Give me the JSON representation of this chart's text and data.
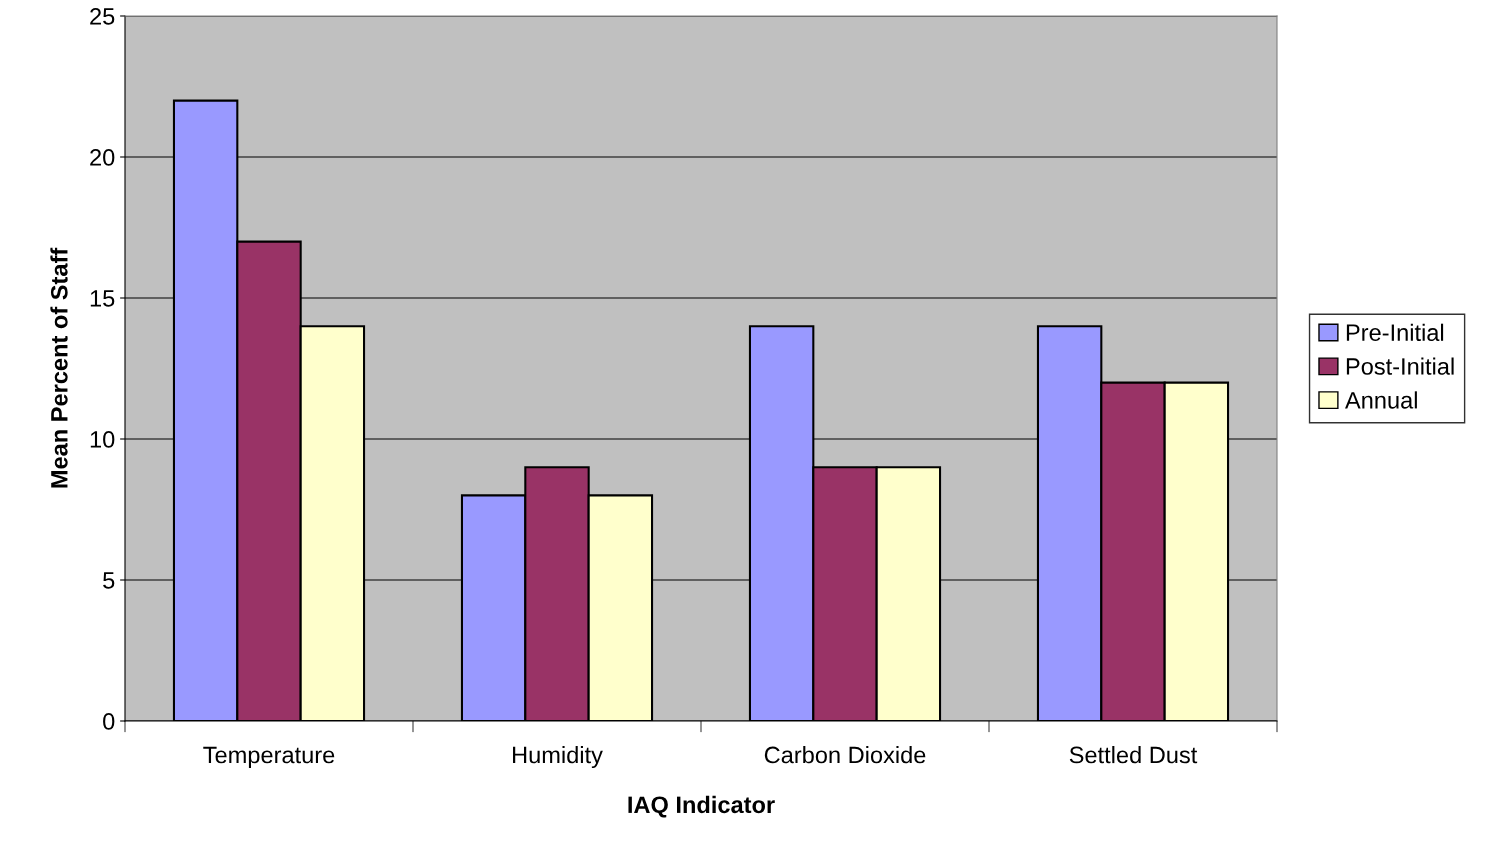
{
  "chart_data": {
    "type": "bar",
    "xlabel": "IAQ Indicator",
    "ylabel": "Mean Percent of Staff",
    "categories": [
      "Temperature",
      "Humidity",
      "Carbon Dioxide",
      "Settled Dust"
    ],
    "series": [
      {
        "name": "Pre-Initial",
        "color": "#9999ff",
        "values": [
          22,
          8,
          14,
          14
        ]
      },
      {
        "name": "Post-Initial",
        "color": "#993366",
        "values": [
          17,
          9,
          9,
          12
        ]
      },
      {
        "name": "Annual",
        "color": "#ffffcc",
        "values": [
          14,
          8,
          9,
          12
        ]
      }
    ],
    "ylim": [
      0,
      25
    ],
    "yticks": [
      0,
      5,
      10,
      15,
      20,
      25
    ],
    "grid": "y",
    "legend": "right"
  }
}
